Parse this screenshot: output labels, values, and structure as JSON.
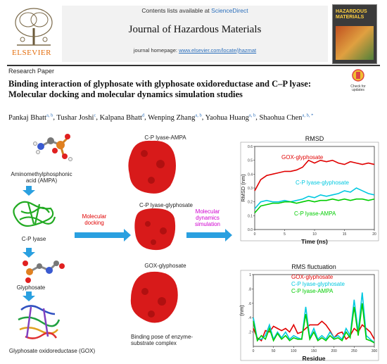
{
  "header": {
    "contents_prefix": "Contents lists available at ",
    "contents_link": "ScienceDirect",
    "journal": "Journal of Hazardous Materials",
    "homepage_prefix": "journal homepage: ",
    "homepage_link": "www.elsevier.com/locate/jhazmat",
    "publisher": "ELSEVIER",
    "cover_title": "HAZARDOUS MATERIALS",
    "check_updates": "Check for updates"
  },
  "article": {
    "type": "Research Paper",
    "title": "Binding interaction of glyphosate with glyphosate oxidoreductase and C–P lyase: Molecular docking and molecular dynamics simulation studies",
    "authors": [
      {
        "name": "Pankaj Bhatt",
        "aff": "a, b"
      },
      {
        "name": "Tushar Joshi",
        "aff": "c"
      },
      {
        "name": "Kalpana Bhatt",
        "aff": "d"
      },
      {
        "name": "Wenping Zhang",
        "aff": "a, b"
      },
      {
        "name": "Yaohua Huang",
        "aff": "a, b"
      },
      {
        "name": "Shaohua Chen",
        "aff": "a, b, *"
      }
    ]
  },
  "graphic": {
    "ampa_label": "Aminomethylphosphonic acid (AMPA)",
    "cp_lyase": "C-P lyase",
    "glyphosate": "Glyphosate",
    "gox_label": "Glyphosate oxidoreductase (GOX)",
    "molecular_docking": "Molecular docking",
    "md_simulation": "Molecular dynamics simulation",
    "complex_cp_ampa": "C-P lyase-AMPA",
    "complex_cp_gly": "C-P lyase-glyphosate",
    "complex_gox": "GOX-glyphosate",
    "binding_pose": "Binding pose of enzyme-substrate complex"
  },
  "chart_data": [
    {
      "type": "line",
      "title": "RMSD",
      "xlabel": "Time (ns)",
      "ylabel": "RMSD (nm)",
      "xlim": [
        0,
        20
      ],
      "ylim": [
        0,
        0.6
      ],
      "xticks": [
        0,
        5,
        10,
        15,
        20
      ],
      "yticks": [
        0.0,
        0.1,
        0.2,
        0.3,
        0.4,
        0.5,
        0.6
      ],
      "xtick_labels": [
        "0",
        "5",
        "10",
        "15",
        "20"
      ],
      "ytick_labels": [
        "0.0",
        "0.1",
        "0.2",
        "0.3",
        "0.4",
        "0.5",
        "0.6"
      ],
      "x": [
        0,
        1,
        2,
        3,
        4,
        5,
        6,
        7,
        8,
        9,
        10,
        11,
        12,
        13,
        14,
        15,
        16,
        17,
        18,
        19,
        20
      ],
      "series": [
        {
          "name": "GOX-glyphosate",
          "color": "#e00000",
          "values": [
            0.28,
            0.36,
            0.39,
            0.4,
            0.41,
            0.42,
            0.42,
            0.43,
            0.45,
            0.5,
            0.48,
            0.5,
            0.49,
            0.5,
            0.48,
            0.47,
            0.49,
            0.48,
            0.47,
            0.48,
            0.47
          ]
        },
        {
          "name": "C-P lyase-glyphosate",
          "color": "#00c8e0",
          "values": [
            0.15,
            0.2,
            0.21,
            0.2,
            0.2,
            0.21,
            0.2,
            0.21,
            0.22,
            0.24,
            0.23,
            0.25,
            0.24,
            0.25,
            0.26,
            0.28,
            0.27,
            0.3,
            0.28,
            0.26,
            0.25
          ]
        },
        {
          "name": "C-P lyase-AMPA",
          "color": "#00cc00",
          "values": [
            0.12,
            0.17,
            0.18,
            0.19,
            0.19,
            0.2,
            0.2,
            0.19,
            0.2,
            0.21,
            0.2,
            0.21,
            0.21,
            0.22,
            0.21,
            0.22,
            0.21,
            0.22,
            0.22,
            0.21,
            0.22
          ]
        }
      ]
    },
    {
      "type": "line",
      "title": "RMS fluctuation",
      "xlabel": "Residue",
      "ylabel": "(nm)",
      "xlim": [
        0,
        300
      ],
      "ylim": [
        0,
        1.0
      ],
      "xticks": [
        0,
        50,
        100,
        150,
        200,
        250,
        300
      ],
      "yticks": [
        0.2,
        0.4,
        0.6,
        0.8,
        1.0
      ],
      "xtick_labels": [
        "0",
        "50",
        "100",
        "150",
        "200",
        "250",
        "300"
      ],
      "ytick_labels": [
        ".2",
        ".4",
        ".6",
        ".8",
        "1"
      ],
      "x": [
        0,
        10,
        20,
        30,
        40,
        50,
        60,
        70,
        80,
        90,
        100,
        110,
        120,
        130,
        140,
        150,
        160,
        170,
        180,
        190,
        200,
        210,
        220,
        230,
        240,
        250,
        260,
        270,
        280,
        290,
        300
      ],
      "series": [
        {
          "name": "GOX-glyphosate",
          "color": "#e00000",
          "values": [
            0.25,
            0.12,
            0.08,
            0.22,
            0.2,
            0.28,
            0.25,
            0.22,
            0.25,
            0.2,
            0.3,
            0.18,
            0.2,
            0.25,
            0.3,
            0.3,
            0.3,
            0.35,
            0.3,
            0.22,
            0.12,
            0.18,
            0.2,
            0.1,
            0.15,
            0.25,
            0.2,
            0.3,
            0.25,
            0.2,
            0.1
          ]
        },
        {
          "name": "C-P lyase-glyphosate",
          "color": "#00c8e0",
          "values": [
            0.4,
            0.1,
            0.1,
            0.15,
            0.3,
            0.1,
            0.2,
            0.12,
            0.2,
            0.1,
            0.15,
            0.12,
            0.1,
            0.55,
            0.12,
            0.25,
            0.1,
            0.15,
            0.1,
            0.2,
            0.12,
            0.15,
            0.1,
            0.25,
            0.15,
            0.65,
            0.2,
            0.75,
            0.15,
            0.1,
            0.05
          ]
        },
        {
          "name": "C-P lyase-AMPA",
          "color": "#00cc00",
          "values": [
            0.35,
            0.08,
            0.15,
            0.1,
            0.25,
            0.08,
            0.18,
            0.1,
            0.15,
            0.08,
            0.12,
            0.1,
            0.1,
            0.45,
            0.1,
            0.2,
            0.08,
            0.12,
            0.08,
            0.15,
            0.1,
            0.12,
            0.08,
            0.2,
            0.12,
            0.55,
            0.15,
            0.6,
            0.1,
            0.08,
            0.05
          ]
        }
      ]
    }
  ]
}
